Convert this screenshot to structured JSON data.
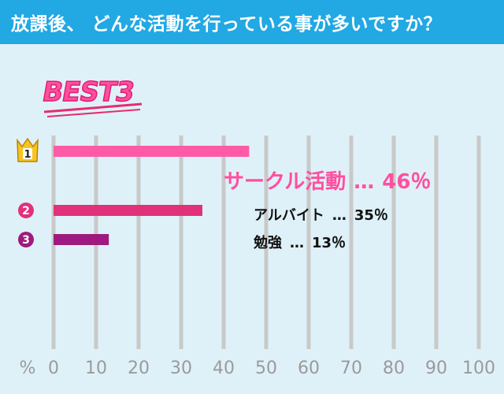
{
  "header": {
    "title": "放課後、 どんな活動を行っている事が多いですか？"
  },
  "badge": {
    "text": "BEST3"
  },
  "colors": {
    "header_bg": "#22a8e3",
    "background": "#dff1f8",
    "grid": "#c9c9c9",
    "rank1": "#ff5aa5",
    "rank2": "#e0317a",
    "rank3": "#9e1a7e",
    "crown": "#f7c51e"
  },
  "chart_data": {
    "type": "bar",
    "orientation": "horizontal",
    "categories": [
      "サークル活動",
      "アルバイト",
      "勉強"
    ],
    "values": [
      46,
      35,
      13
    ],
    "ranks": [
      "1",
      "2",
      "3"
    ],
    "unit_suffix": "%",
    "separator": "…",
    "x_axis_unit": "%",
    "xlim": [
      0,
      100
    ],
    "xticks": [
      0,
      10,
      20,
      30,
      40,
      50,
      60,
      70,
      80,
      90,
      100
    ],
    "grid": true
  },
  "labels": {
    "item1": {
      "name": "サークル活動",
      "sep": "…",
      "value": "46％"
    },
    "item2": {
      "name": "アルバイト",
      "sep": "…",
      "value": "35％"
    },
    "item3": {
      "name": "勉強",
      "sep": "…",
      "value": "13％"
    }
  }
}
